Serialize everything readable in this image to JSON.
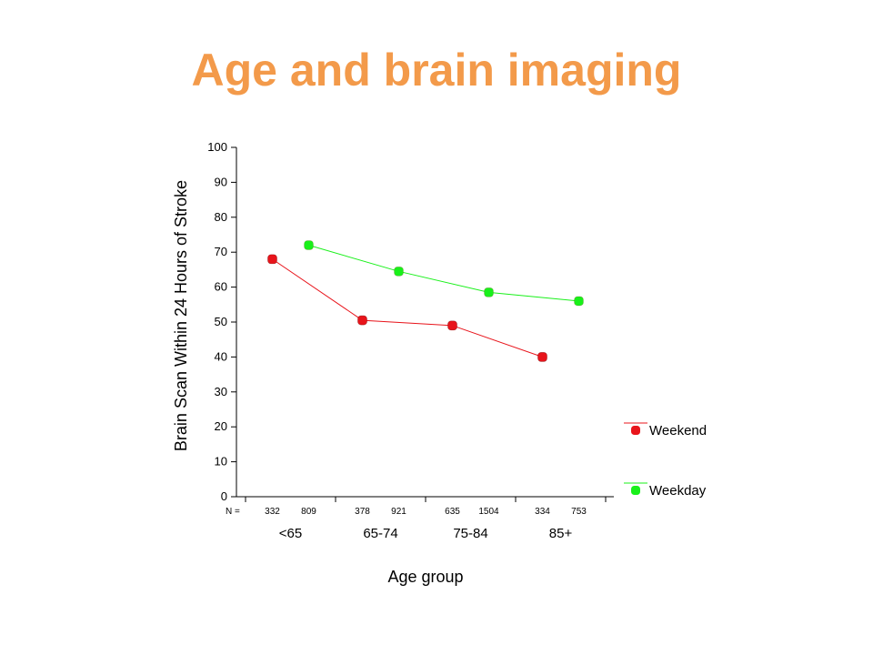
{
  "slide": {
    "title": "Age and brain imaging",
    "title_color": "#f39a4a"
  },
  "chart_data": {
    "type": "line",
    "ylabel": "Brain Scan Within 24 Hours of Stroke",
    "xlabel": "Age group",
    "ylim": [
      0,
      100
    ],
    "yticks": [
      0,
      10,
      20,
      30,
      40,
      50,
      60,
      70,
      80,
      90,
      100
    ],
    "grid": false,
    "legend_position": "right",
    "categories": [
      "<65",
      "65-74",
      "75-84",
      "85+"
    ],
    "n_prefix": "N =",
    "series": [
      {
        "name": "Weekend",
        "color": "#e8141b",
        "values": [
          68,
          50.5,
          49,
          40
        ],
        "n": [
          "332",
          "378",
          "635",
          "334"
        ]
      },
      {
        "name": "Weekday",
        "color": "#19f01a",
        "values": [
          72,
          64.5,
          58.5,
          56
        ],
        "n": [
          "809",
          "921",
          "1504",
          "753"
        ]
      }
    ]
  }
}
